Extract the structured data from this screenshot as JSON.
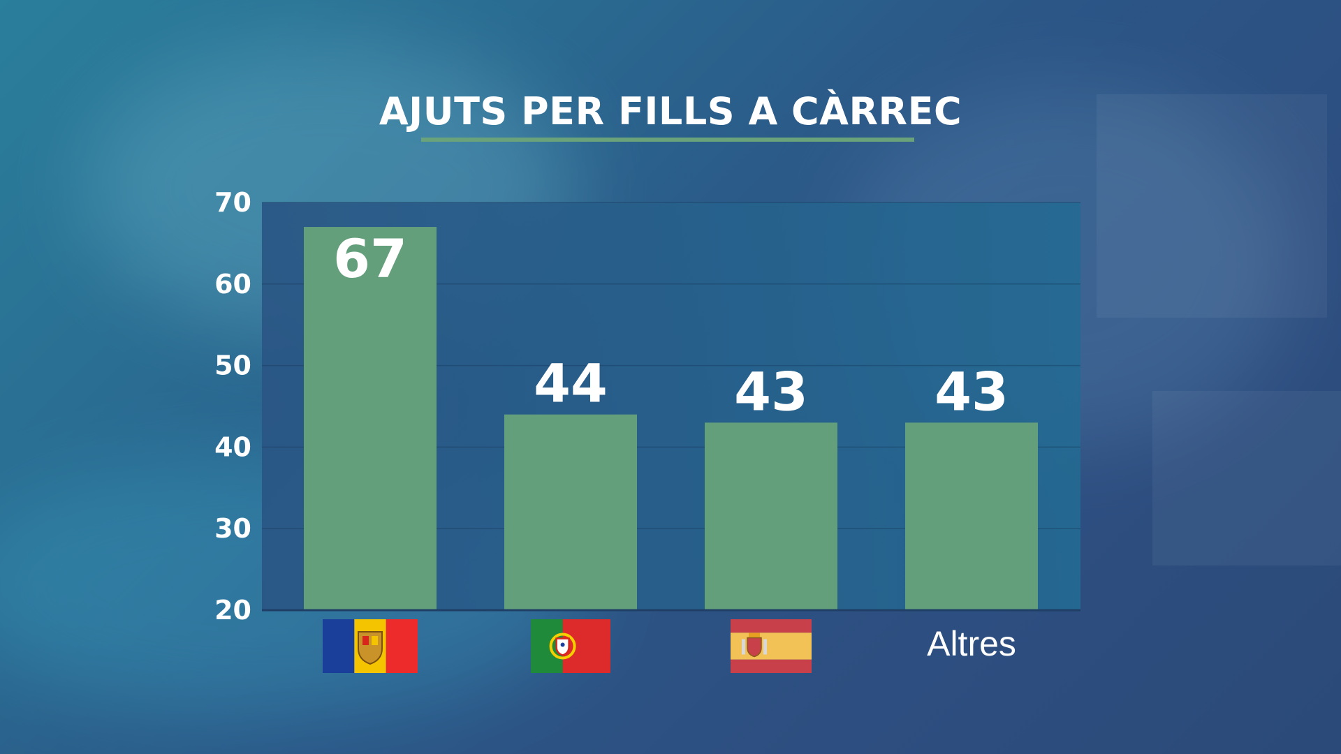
{
  "title": "AJUTS PER FILLS A CÀRREC",
  "colors": {
    "bar": "#649f7c",
    "plot_bg": "#235d86",
    "text": "#ffffff",
    "underline": "#6aa37a"
  },
  "chart_data": {
    "type": "bar",
    "title": "AJUTS PER FILLS A CÀRREC",
    "xlabel": "",
    "ylabel": "",
    "ylim": [
      20,
      70
    ],
    "yticks": [
      20,
      30,
      40,
      50,
      60,
      70
    ],
    "grid": true,
    "categories": [
      {
        "label": "",
        "icon": "andorra-flag-icon"
      },
      {
        "label": "",
        "icon": "portugal-flag-icon"
      },
      {
        "label": "",
        "icon": "spain-flag-icon"
      },
      {
        "label": "Altres",
        "icon": ""
      }
    ],
    "values": [
      67,
      44,
      43,
      43
    ],
    "data_labels": [
      "67",
      "44",
      "43",
      "43"
    ]
  }
}
